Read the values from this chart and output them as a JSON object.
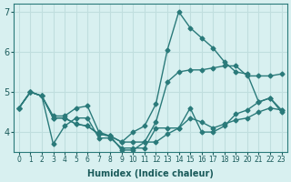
{
  "xlabel": "Humidex (Indice chaleur)",
  "ylabel": "",
  "background_color": "#d8f0f0",
  "grid_color": "#c0dede",
  "line_color": "#2a7a7a",
  "xlim": [
    -0.5,
    23.5
  ],
  "ylim": [
    3.5,
    7.2
  ],
  "yticks": [
    4,
    5,
    6,
    7
  ],
  "xtick_labels": [
    "0",
    "1",
    "2",
    "3",
    "4",
    "5",
    "6",
    "7",
    "8",
    "9",
    "10",
    "11",
    "12",
    "13",
    "14",
    "15",
    "16",
    "17",
    "18",
    "19",
    "20",
    "21",
    "22",
    "23"
  ],
  "series": [
    [
      4.6,
      5.0,
      4.9,
      4.4,
      4.4,
      4.6,
      4.65,
      4.0,
      3.9,
      3.75,
      4.0,
      4.15,
      4.7,
      6.05,
      7.0,
      6.6,
      6.35,
      6.1,
      5.75,
      5.5,
      5.45,
      4.75,
      4.85,
      4.5
    ],
    [
      4.6,
      5.0,
      4.9,
      4.35,
      4.35,
      4.2,
      4.15,
      3.95,
      3.9,
      3.55,
      3.55,
      3.75,
      3.75,
      3.95,
      4.1,
      4.35,
      4.25,
      4.1,
      4.2,
      4.3,
      4.35,
      4.5,
      4.6,
      4.55
    ],
    [
      4.6,
      5.0,
      4.9,
      4.35,
      4.35,
      4.2,
      4.15,
      3.95,
      3.9,
      3.75,
      3.75,
      3.75,
      4.25,
      5.25,
      5.5,
      5.55,
      5.55,
      5.6,
      5.65,
      5.65,
      5.4,
      5.4,
      5.4,
      5.45
    ],
    [
      4.6,
      5.0,
      4.9,
      3.7,
      4.15,
      4.35,
      4.35,
      3.85,
      3.85,
      3.6,
      3.6,
      3.6,
      4.1,
      4.1,
      4.1,
      4.6,
      4.0,
      4.0,
      4.15,
      4.45,
      4.55,
      4.75,
      4.85,
      4.55
    ]
  ]
}
